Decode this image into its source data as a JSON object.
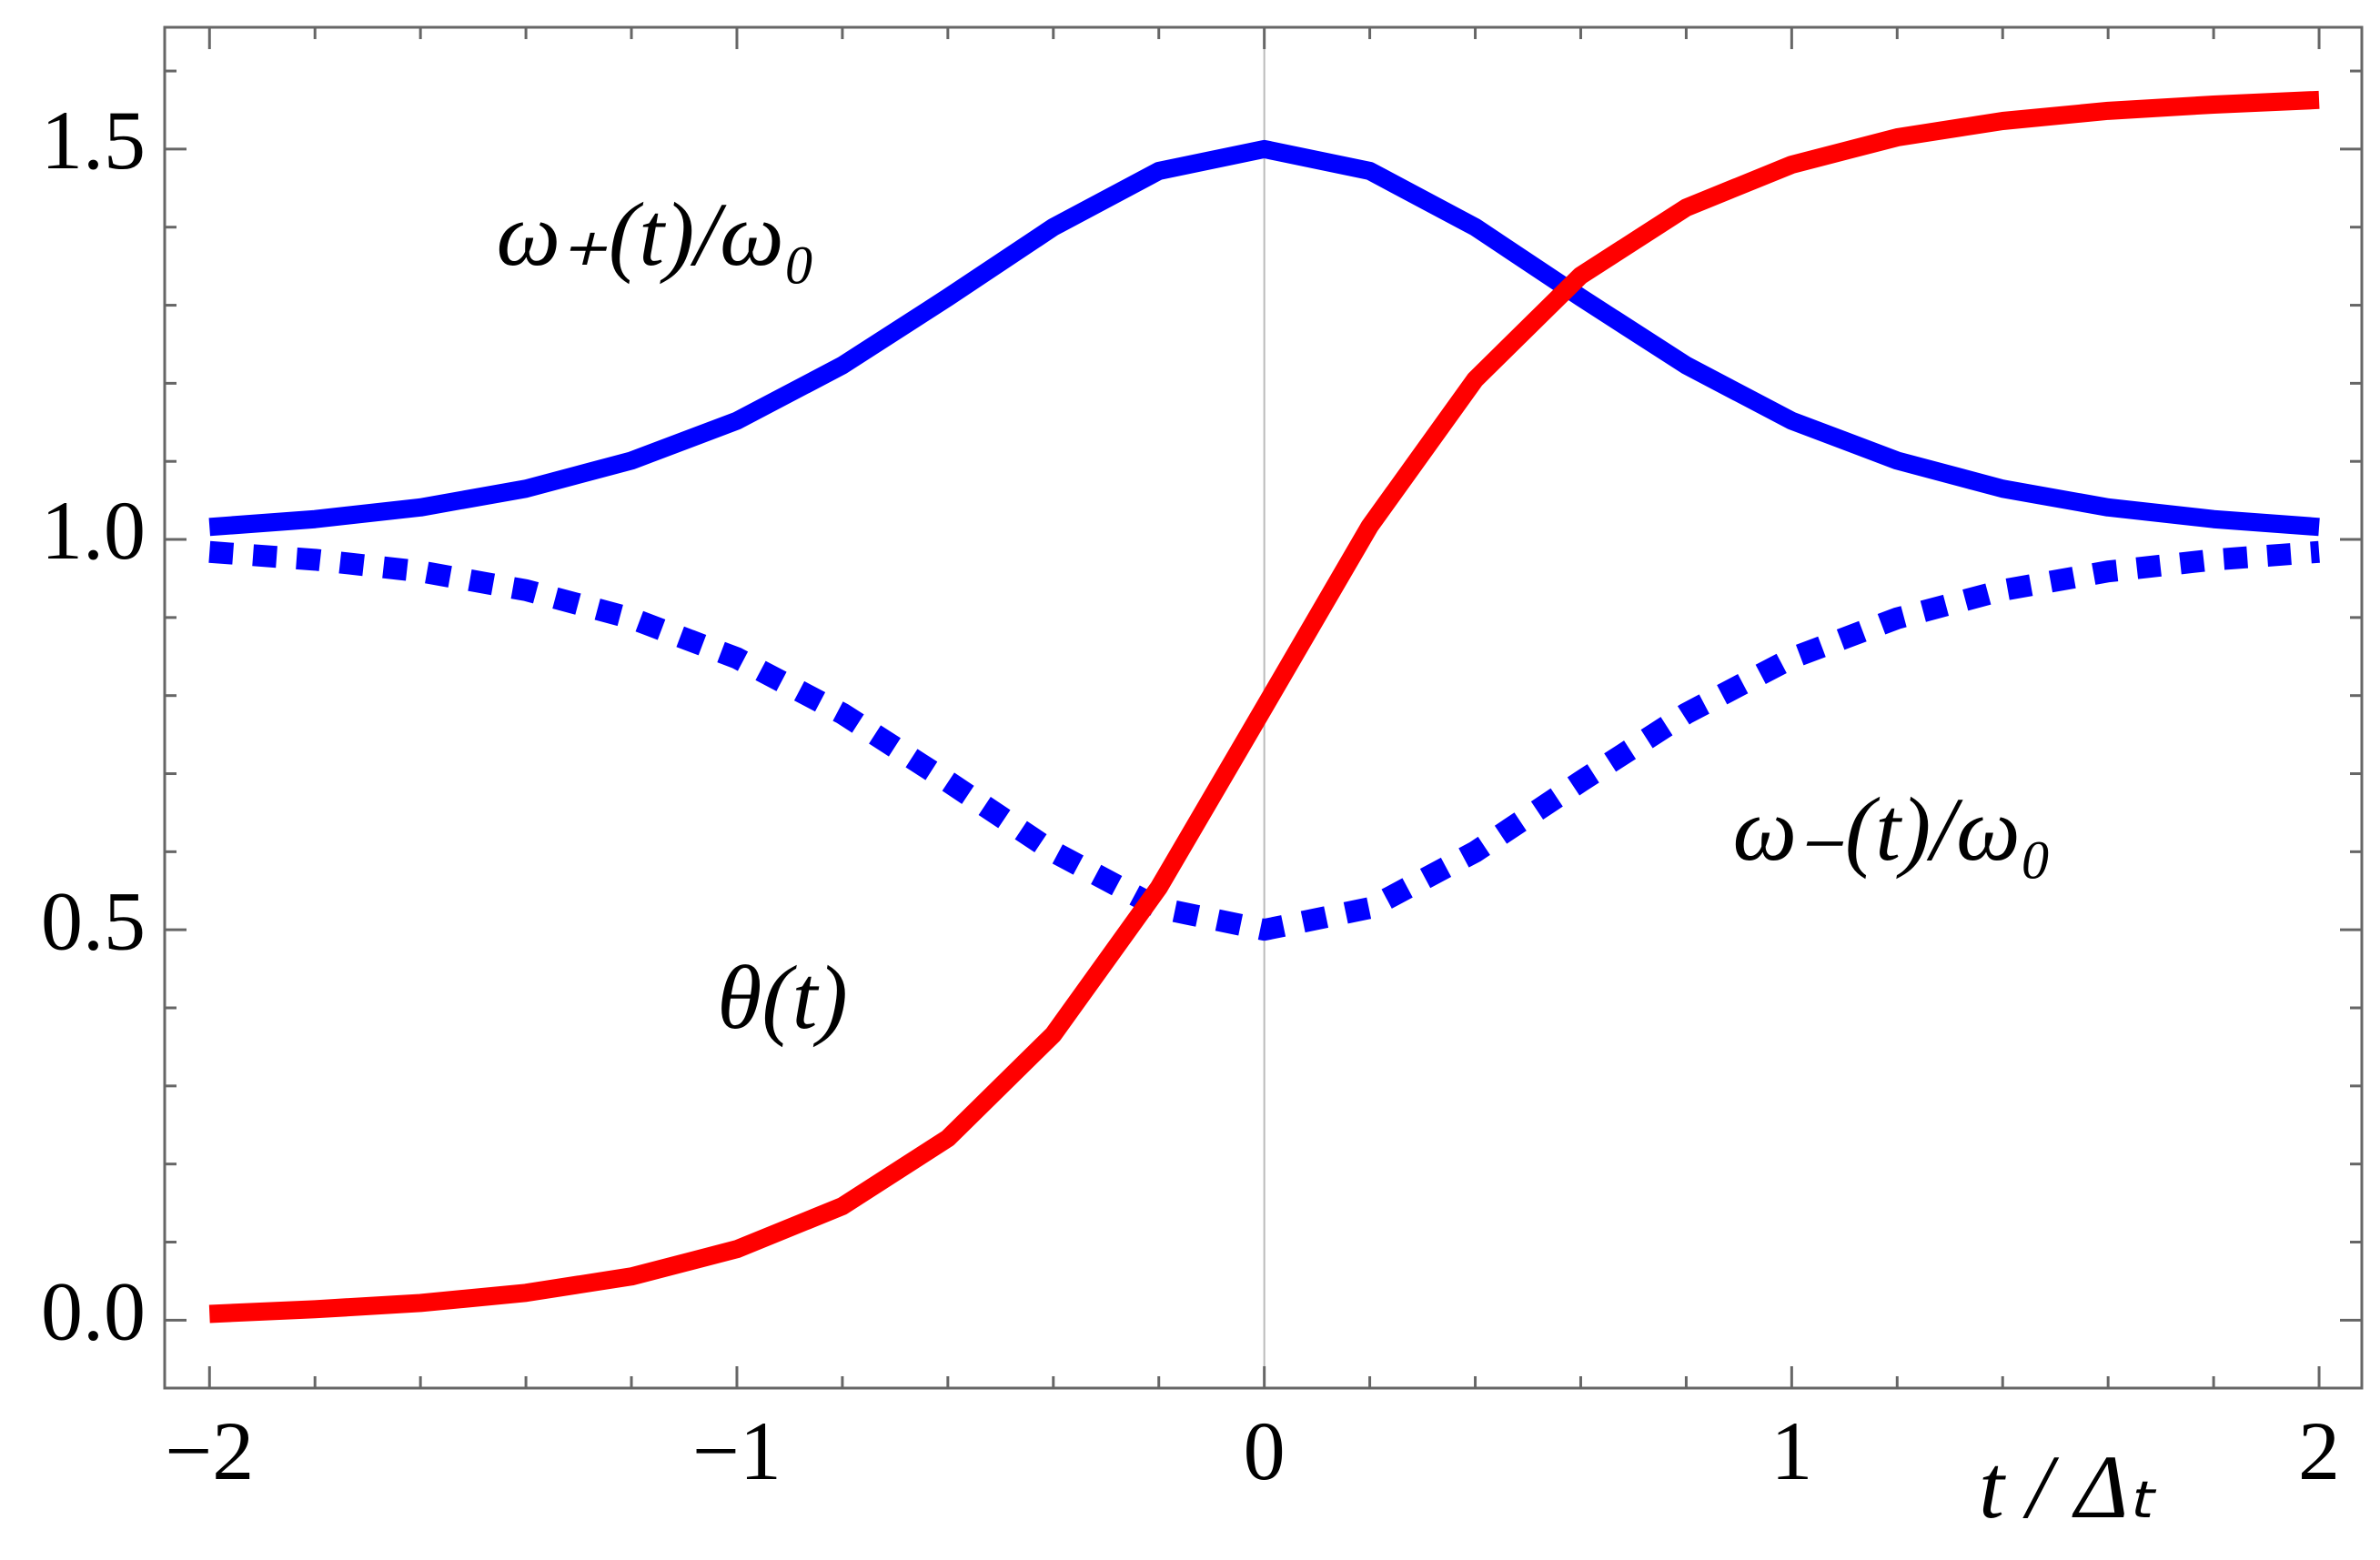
{
  "chart_data": {
    "type": "line",
    "x": [
      -2,
      -1.8,
      -1.6,
      -1.4,
      -1.2,
      -1,
      -0.8,
      -0.6,
      -0.4,
      -0.2,
      0,
      0.2,
      0.4,
      0.6,
      0.8,
      1,
      1.2,
      1.4,
      1.6,
      1.8,
      2
    ],
    "series": [
      {
        "name": "ω₊(t)/ω₀",
        "color": "#0000ff",
        "dash": false,
        "values": [
          1.016,
          1.026,
          1.041,
          1.065,
          1.101,
          1.152,
          1.223,
          1.31,
          1.4,
          1.472,
          1.5,
          1.472,
          1.4,
          1.31,
          1.223,
          1.152,
          1.101,
          1.065,
          1.041,
          1.026,
          1.016
        ]
      },
      {
        "name": "ω₋(t)/ω₀",
        "color": "#0000ff",
        "dash": true,
        "values": [
          0.984,
          0.974,
          0.959,
          0.935,
          0.899,
          0.848,
          0.777,
          0.69,
          0.6,
          0.528,
          0.5,
          0.528,
          0.6,
          0.69,
          0.777,
          0.848,
          0.899,
          0.935,
          0.959,
          0.974,
          0.984
        ]
      },
      {
        "name": "θ(t)",
        "color": "#ff0000",
        "dash": false,
        "values": [
          0.008,
          0.014,
          0.022,
          0.035,
          0.056,
          0.091,
          0.146,
          0.233,
          0.366,
          0.554,
          0.785,
          1.017,
          1.205,
          1.338,
          1.425,
          1.48,
          1.515,
          1.536,
          1.549,
          1.557,
          1.563
        ]
      }
    ],
    "x_label": "t / Δₜ",
    "xlim": [
      -2.085,
      2.081
    ],
    "ylim": [
      -0.087,
      1.656
    ],
    "xticks": [
      {
        "value": -2,
        "label": "−2"
      },
      {
        "value": -1,
        "label": "−1"
      },
      0,
      1,
      2
    ],
    "yticks": [
      {
        "value": 0,
        "label": "0.0"
      },
      0.5,
      {
        "value": 1,
        "label": "1.0"
      },
      1.5
    ],
    "xminorticks": [
      -1.8,
      -1.6,
      -1.4,
      -1.2,
      -0.8,
      -0.6,
      -0.4,
      -0.2,
      0.2,
      0.4,
      0.6,
      0.8,
      1.2,
      1.4,
      1.6,
      1.8
    ],
    "yminorticks": [
      0.1,
      0.2,
      0.3,
      0.4,
      0.6,
      0.7,
      0.8,
      0.9,
      1.1,
      1.2,
      1.3,
      1.4,
      1.6
    ]
  }
}
